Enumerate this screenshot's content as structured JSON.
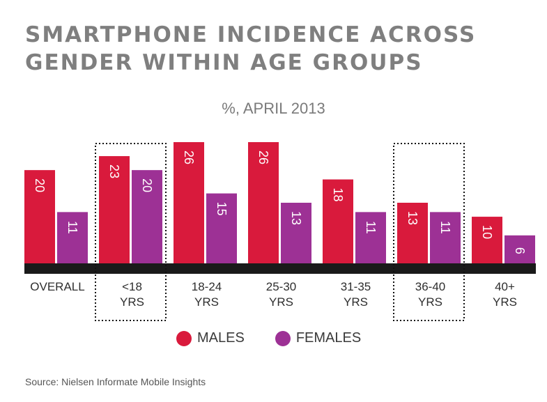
{
  "title": "SMARTPHONE INCIDENCE ACROSS GENDER WITHIN AGE GROUPS",
  "subtitle": "%, APRIL 2013",
  "source": "Source: Nielsen Informate Mobile Insights",
  "colors": {
    "males": "#d91a3c",
    "females": "#9d3195",
    "baseline": "#1a1a1a",
    "label": "#ffffff"
  },
  "chart_data": {
    "type": "bar",
    "title": "SMARTPHONE INCIDENCE ACROSS GENDER WITHIN AGE GROUPS",
    "subtitle": "%, APRIL 2013",
    "categories": [
      [
        "OVERALL"
      ],
      [
        "<18",
        "YRS"
      ],
      [
        "18-24",
        "YRS"
      ],
      [
        "25-30",
        "YRS"
      ],
      [
        "31-35",
        "YRS"
      ],
      [
        "36-40",
        "YRS"
      ],
      [
        "40+",
        "YRS"
      ]
    ],
    "series": [
      {
        "name": "MALES",
        "values": [
          20,
          23,
          26,
          26,
          18,
          13,
          10
        ]
      },
      {
        "name": "FEMALES",
        "values": [
          11,
          20,
          15,
          13,
          11,
          11,
          6
        ]
      }
    ],
    "highlighted_categories": [
      1,
      5
    ],
    "legend_position": "bottom",
    "grid": false,
    "ylim": [
      0,
      26
    ]
  }
}
